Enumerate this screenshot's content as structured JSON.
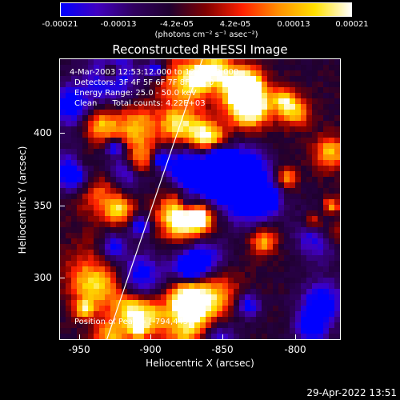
{
  "colorbar": {
    "ticks": [
      "-0.00021",
      "-0.00013",
      "-4.2e-05",
      "4.2e-05",
      "0.00013",
      "0.00021"
    ],
    "units": "(photons cm⁻² s⁻¹ asec⁻²)",
    "colors": [
      "#0000ff",
      "#4000c0",
      "#300060",
      "#200030",
      "#800000",
      "#ff2000",
      "#ff9000",
      "#ffe000",
      "#ffffff"
    ]
  },
  "title": "Reconstructed RHESSI Image",
  "info": {
    "time": "4-Mar-2003 12:53:12.000 to 12:59:12.000",
    "detectors": "Detectors: 3F 4F 5F 6F 7F 8F, Att 0",
    "energy": "Energy Range: 25.0 - 50.0 keV",
    "method": "Clean      Total counts: 4.22E+03",
    "peak": "Position of Peak = [-794,445]"
  },
  "axes": {
    "xlabel": "Heliocentric X (arcsec)",
    "ylabel": "Heliocentric Y (arcsec)",
    "xticks": [
      "-950",
      "-900",
      "-850",
      "-800"
    ],
    "yticks": [
      "400",
      "350",
      "300"
    ]
  },
  "datestamp": "29-Apr-2022 13:51"
}
